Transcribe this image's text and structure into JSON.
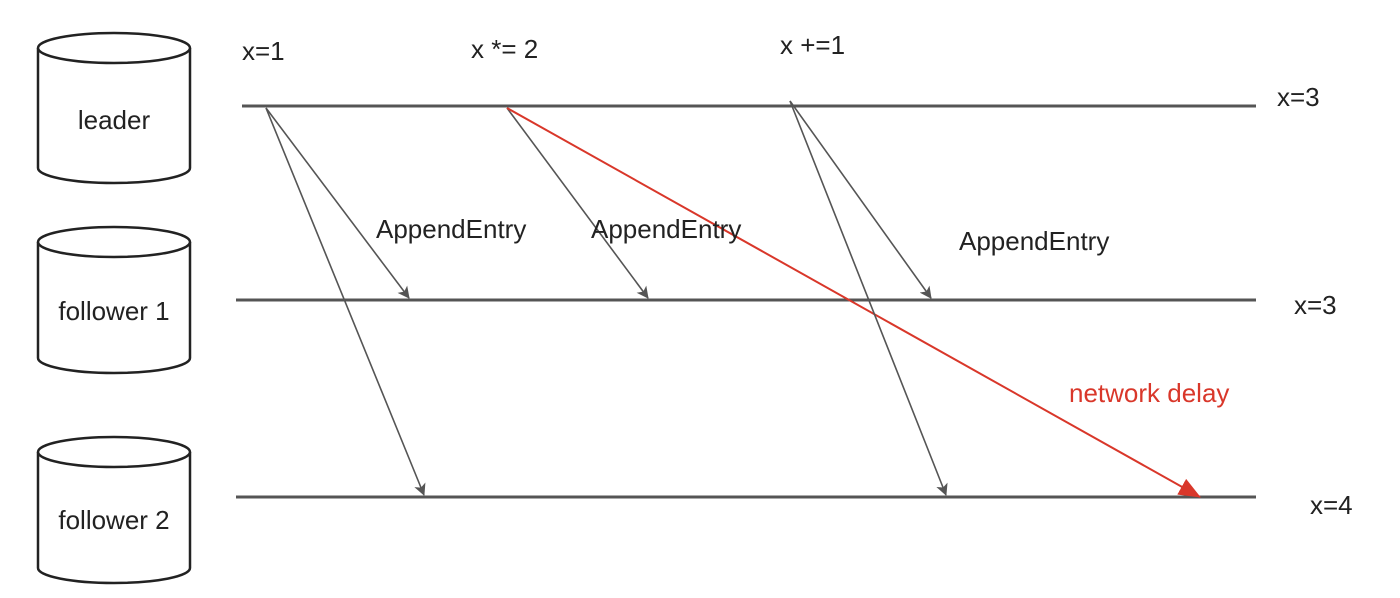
{
  "nodes": {
    "leader": "leader",
    "follower1": "follower 1",
    "follower2": "follower 2"
  },
  "operations": {
    "op1": "x=1",
    "op2": "x *= 2",
    "op3": "x +=1"
  },
  "messages": {
    "append1": "AppendEntry",
    "append2": "AppendEntry",
    "append3": "AppendEntry",
    "delay": "network delay"
  },
  "final_states": {
    "leader": "x=3",
    "follower1": "x=3",
    "follower2": "x=4"
  },
  "colors": {
    "line": "#555555",
    "delay": "#d9372a",
    "text": "#222222"
  }
}
